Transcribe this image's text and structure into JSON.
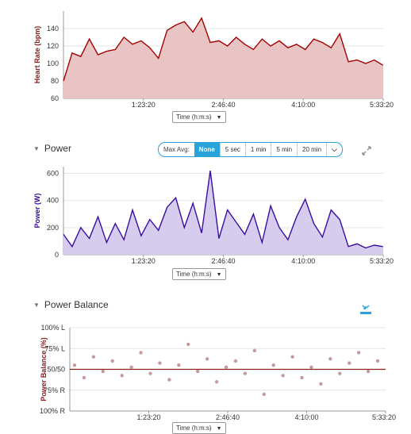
{
  "heart_rate": {
    "ylabel": "Heart Rate (bpm)",
    "time_select": "Time (h:m:s)"
  },
  "power": {
    "title": "Power",
    "ylabel": "Power (W)",
    "time_select": "Time (h:m:s)",
    "max_avg_label": "Max Avg:",
    "avg_options": [
      "None",
      "5 sec",
      "1 min",
      "5 min",
      "20 min"
    ],
    "avg_selected": "None"
  },
  "power_balance": {
    "title": "Power Balance",
    "ylabel": "Power Balance (%)",
    "time_select": "Time (h:m:s)"
  },
  "icons": {
    "expand": "expand-arrows-icon",
    "collapse": "collapse-arrows-icon",
    "section_toggle": "triangle-down-icon",
    "select_caret": "caret-down-icon"
  },
  "colors": {
    "heart_rate_line": "#a30000",
    "heart_rate_fill": "#e8c4c4",
    "power_line": "#3a0ca3",
    "power_fill": "#d6cdee",
    "balance_points": "#b07a7a",
    "balance_line": "#8b2020",
    "accent": "#29a3d9"
  },
  "chart_data": [
    {
      "type": "area",
      "ylabel": "Heart Rate (bpm)",
      "xlabel": "Time (h:m:s)",
      "ylim": [
        60,
        160
      ],
      "yticks": [
        "60",
        "80",
        "100",
        "120",
        "140"
      ],
      "xticks": [
        "1:23:20",
        "2:46:40",
        "4:10:00",
        "5:33:20"
      ],
      "x": [
        "0:00:00",
        "0:09:00",
        "0:18:00",
        "0:27:00",
        "0:36:00",
        "0:45:00",
        "0:54:00",
        "1:03:00",
        "1:12:00",
        "1:21:00",
        "1:30:00",
        "1:39:00",
        "1:48:00",
        "1:57:00",
        "2:06:00",
        "2:15:00",
        "2:24:00",
        "2:33:00",
        "2:42:00",
        "2:51:00",
        "3:00:00",
        "3:09:00",
        "3:18:00",
        "3:27:00",
        "3:36:00",
        "3:45:00",
        "3:54:00",
        "4:03:00",
        "4:12:00",
        "4:21:00",
        "4:30:00",
        "4:39:00",
        "4:48:00",
        "4:57:00",
        "5:06:00",
        "5:15:00",
        "5:24:00",
        "5:33:00"
      ],
      "values": [
        80,
        112,
        108,
        128,
        110,
        114,
        116,
        130,
        122,
        126,
        118,
        106,
        138,
        144,
        148,
        136,
        152,
        124,
        126,
        120,
        130,
        122,
        116,
        128,
        120,
        126,
        118,
        122,
        116,
        128,
        124,
        118,
        134,
        102,
        104,
        100,
        104,
        98
      ]
    },
    {
      "type": "area",
      "ylabel": "Power (W)",
      "xlabel": "Time (h:m:s)",
      "ylim": [
        0,
        650
      ],
      "yticks": [
        "0",
        "200",
        "400",
        "600"
      ],
      "xticks": [
        "1:23:20",
        "2:46:40",
        "4:10:00",
        "5:33:20"
      ],
      "x": [
        "0:00:00",
        "0:09:00",
        "0:18:00",
        "0:27:00",
        "0:36:00",
        "0:45:00",
        "0:54:00",
        "1:03:00",
        "1:12:00",
        "1:21:00",
        "1:30:00",
        "1:39:00",
        "1:48:00",
        "1:57:00",
        "2:06:00",
        "2:15:00",
        "2:24:00",
        "2:33:00",
        "2:42:00",
        "2:51:00",
        "3:00:00",
        "3:09:00",
        "3:18:00",
        "3:27:00",
        "3:36:00",
        "3:45:00",
        "3:54:00",
        "4:03:00",
        "4:12:00",
        "4:21:00",
        "4:30:00",
        "4:39:00",
        "4:48:00",
        "4:57:00",
        "5:06:00",
        "5:15:00",
        "5:24:00",
        "5:33:00"
      ],
      "values": [
        150,
        60,
        200,
        120,
        280,
        90,
        230,
        110,
        330,
        140,
        260,
        180,
        350,
        420,
        200,
        380,
        160,
        620,
        120,
        330,
        240,
        150,
        300,
        90,
        360,
        200,
        110,
        280,
        410,
        230,
        130,
        330,
        260,
        60,
        80,
        50,
        70,
        60
      ]
    },
    {
      "type": "scatter",
      "ylabel": "Power Balance (%)",
      "xlabel": "Time (h:m:s)",
      "ylim": [
        -100,
        100
      ],
      "yticks": [
        "100% L",
        "75% L",
        "50/50",
        "75% R",
        "100% R"
      ],
      "xticks": [
        "1:23:20",
        "2:46:40",
        "4:10:00",
        "5:33:20"
      ],
      "trend_value": 0,
      "x": [
        "0:05:00",
        "0:15:00",
        "0:25:00",
        "0:35:00",
        "0:45:00",
        "0:55:00",
        "1:05:00",
        "1:15:00",
        "1:25:00",
        "1:35:00",
        "1:45:00",
        "1:55:00",
        "2:05:00",
        "2:15:00",
        "2:25:00",
        "2:35:00",
        "2:45:00",
        "2:55:00",
        "3:05:00",
        "3:15:00",
        "3:25:00",
        "3:35:00",
        "3:45:00",
        "3:55:00",
        "4:05:00",
        "4:15:00",
        "4:25:00",
        "4:35:00",
        "4:45:00",
        "4:55:00",
        "5:05:00",
        "5:15:00",
        "5:25:00"
      ],
      "values": [
        10,
        -20,
        30,
        -5,
        20,
        -15,
        5,
        40,
        -10,
        15,
        -25,
        10,
        60,
        -5,
        25,
        -30,
        5,
        20,
        -10,
        45,
        -60,
        10,
        -15,
        30,
        -20,
        5,
        -35,
        25,
        -10,
        15,
        40,
        -5,
        20
      ]
    }
  ]
}
